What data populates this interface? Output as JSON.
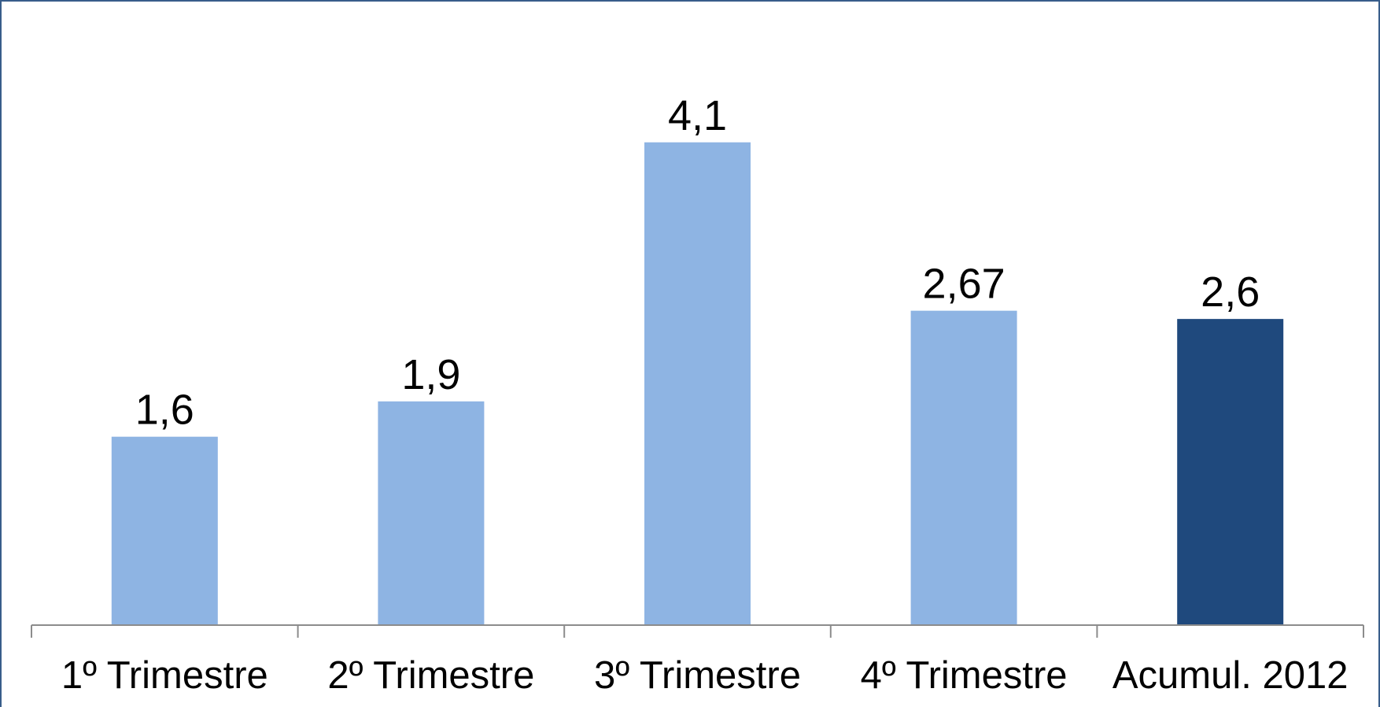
{
  "chart_data": {
    "type": "bar",
    "title": "",
    "xlabel": "",
    "ylabel": "",
    "categories": [
      "1º Trimestre",
      "2º Trimestre",
      "3º Trimestre",
      "4º Trimestre",
      "Acumul. 2012"
    ],
    "values": [
      1.6,
      1.9,
      4.1,
      2.67,
      2.6
    ],
    "data_labels": [
      "1,6",
      "1,9",
      "4,1",
      "2,67",
      "2,6"
    ],
    "ylim": [
      0,
      4.6
    ],
    "grid": false,
    "legend": "none",
    "colors": {
      "default_bar": "#8eb4e3",
      "highlight_bar": "#1f497d",
      "axis": "#8c8c8c"
    },
    "highlight_index": 4
  }
}
